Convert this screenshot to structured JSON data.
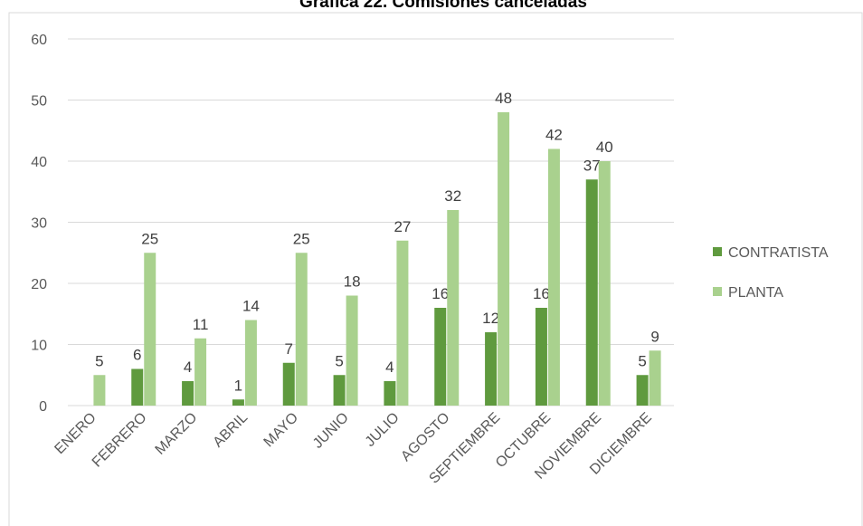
{
  "chart_data": {
    "type": "bar",
    "title": "Gráfica 22. Comisiones canceladas",
    "categories": [
      "ENERO",
      "FEBRERO",
      "MARZO",
      "ABRIL",
      "MAYO",
      "JUNIO",
      "JULIO",
      "AGOSTO",
      "SEPTIEMBRE",
      "OCTUBRE",
      "NOVIEMBRE",
      "DICIEMBRE"
    ],
    "series": [
      {
        "name": "CONTRATISTA",
        "color": "#5f9a3e",
        "values": [
          null,
          6,
          4,
          1,
          7,
          5,
          4,
          16,
          12,
          16,
          37,
          5
        ]
      },
      {
        "name": "PLANTA",
        "color": "#a9d18e",
        "values": [
          5,
          25,
          11,
          14,
          25,
          18,
          27,
          32,
          48,
          42,
          40,
          9
        ]
      }
    ],
    "ylim": [
      0,
      60
    ],
    "yticks": [
      0,
      10,
      20,
      30,
      40,
      50,
      60
    ],
    "grid": true,
    "legend": "right"
  }
}
